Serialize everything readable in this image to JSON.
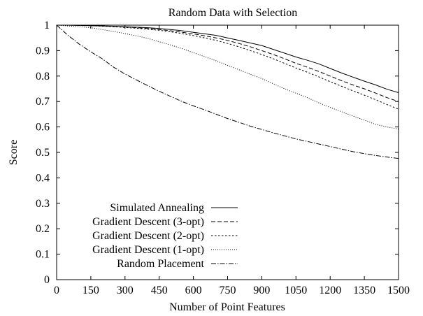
{
  "chart_data": {
    "type": "line",
    "title": "Random Data with Selection",
    "xlabel": "Number of Point Features",
    "ylabel": "Score",
    "xlim": [
      0,
      1500
    ],
    "ylim": [
      0,
      1
    ],
    "xticks": [
      "0",
      "150",
      "300",
      "450",
      "600",
      "750",
      "900",
      "1050",
      "1200",
      "1350",
      "1500"
    ],
    "yticks": [
      "0",
      "0.1",
      "0.2",
      "0.3",
      "0.4",
      "0.5",
      "0.6",
      "0.7",
      "0.8",
      "0.9",
      "1"
    ],
    "grid": false,
    "legend_position": "bottom-left",
    "x": [
      0,
      50,
      100,
      150,
      200,
      250,
      300,
      350,
      400,
      450,
      500,
      550,
      600,
      650,
      700,
      750,
      800,
      850,
      900,
      950,
      1000,
      1050,
      1100,
      1150,
      1200,
      1250,
      1300,
      1350,
      1400,
      1450,
      1500
    ],
    "series": [
      {
        "name": "Simulated Annealing",
        "dash": "",
        "values": [
          1.0,
          1.0,
          0.999,
          0.998,
          0.997,
          0.996,
          0.994,
          0.992,
          0.99,
          0.987,
          0.983,
          0.978,
          0.972,
          0.966,
          0.96,
          0.95,
          0.94,
          0.93,
          0.92,
          0.905,
          0.89,
          0.875,
          0.862,
          0.848,
          0.83,
          0.812,
          0.796,
          0.78,
          0.765,
          0.748,
          0.735
        ]
      },
      {
        "name": "Gradient Descent (3-opt)",
        "dash": "6,3",
        "values": [
          1.0,
          1.0,
          0.999,
          0.998,
          0.997,
          0.995,
          0.993,
          0.99,
          0.987,
          0.983,
          0.978,
          0.972,
          0.966,
          0.958,
          0.95,
          0.94,
          0.928,
          0.915,
          0.9,
          0.885,
          0.868,
          0.85,
          0.835,
          0.818,
          0.8,
          0.782,
          0.765,
          0.75,
          0.733,
          0.715,
          0.7
        ]
      },
      {
        "name": "Gradient Descent (2-opt)",
        "dash": "2.5,2.5",
        "values": [
          1.0,
          1.0,
          0.999,
          0.998,
          0.996,
          0.994,
          0.991,
          0.988,
          0.984,
          0.98,
          0.974,
          0.967,
          0.959,
          0.95,
          0.94,
          0.928,
          0.915,
          0.9,
          0.885,
          0.868,
          0.85,
          0.832,
          0.815,
          0.797,
          0.778,
          0.76,
          0.742,
          0.725,
          0.707,
          0.688,
          0.67
        ]
      },
      {
        "name": "Gradient Descent (1-opt)",
        "dash": "1,2",
        "values": [
          1.0,
          0.997,
          0.994,
          0.99,
          0.983,
          0.975,
          0.967,
          0.958,
          0.948,
          0.935,
          0.922,
          0.908,
          0.892,
          0.876,
          0.86,
          0.842,
          0.825,
          0.807,
          0.79,
          0.77,
          0.75,
          0.733,
          0.715,
          0.695,
          0.677,
          0.66,
          0.643,
          0.627,
          0.61,
          0.6,
          0.592
        ]
      },
      {
        "name": "Random Placement",
        "dash": "7,2,1.5,2",
        "values": [
          1.0,
          0.96,
          0.925,
          0.895,
          0.868,
          0.835,
          0.808,
          0.785,
          0.762,
          0.74,
          0.72,
          0.7,
          0.683,
          0.667,
          0.65,
          0.633,
          0.618,
          0.603,
          0.59,
          0.577,
          0.565,
          0.553,
          0.543,
          0.533,
          0.523,
          0.513,
          0.503,
          0.495,
          0.488,
          0.482,
          0.476
        ]
      }
    ]
  }
}
